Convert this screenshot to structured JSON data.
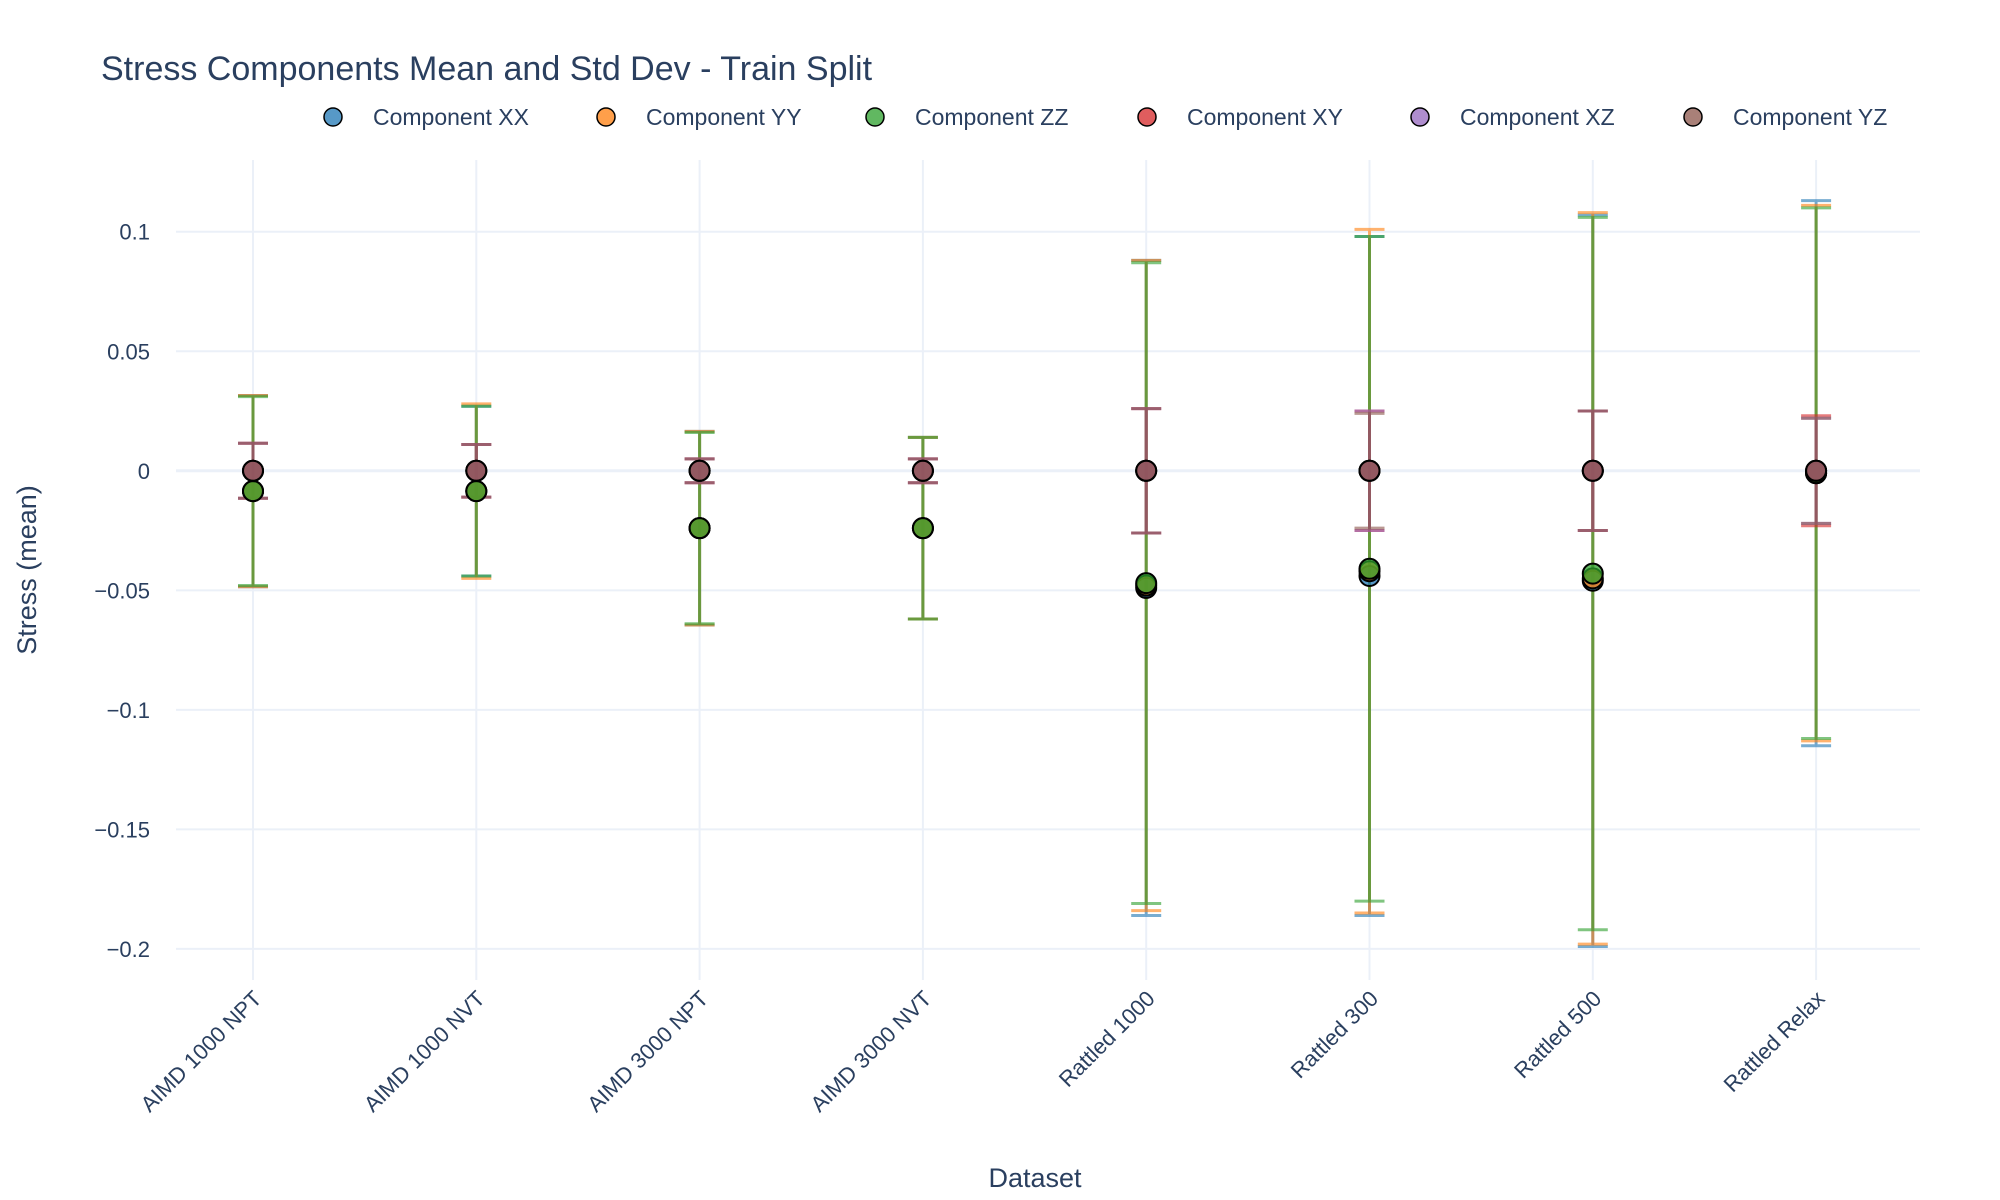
{
  "chart_data": {
    "type": "scatter",
    "title": "Stress Components Mean and Std Dev - Train Split",
    "xlabel": "Dataset",
    "ylabel": "Stress (mean)",
    "ylim": [
      -0.213,
      0.13
    ],
    "yticks": [
      0.1,
      0.05,
      0,
      -0.05,
      -0.1,
      -0.15,
      -0.2
    ],
    "ytick_labels": [
      "0.1",
      "0.05",
      "0",
      "−0.05",
      "−0.1",
      "−0.15",
      "−0.2"
    ],
    "grid": true,
    "legend_position": "top",
    "categories": [
      "AIMD 1000 NPT",
      "AIMD 1000 NVT",
      "AIMD 3000 NPT",
      "AIMD 3000 NVT",
      "Rattled 1000",
      "Rattled 300",
      "Rattled 500",
      "Rattled Relax"
    ],
    "series": [
      {
        "name": "Component XX",
        "color": "#1f77b4",
        "values": [
          -0.0085,
          -0.0085,
          -0.024,
          -0.024,
          -0.049,
          -0.044,
          -0.046,
          -0.001
        ],
        "std": [
          0.04,
          0.0355,
          0.0405,
          0.038,
          0.137,
          0.142,
          0.153,
          0.114
        ]
      },
      {
        "name": "Component YY",
        "color": "#ff7f0e",
        "values": [
          -0.0085,
          -0.0085,
          -0.024,
          -0.024,
          -0.048,
          -0.042,
          -0.045,
          -0.001
        ],
        "std": [
          0.04,
          0.0365,
          0.0405,
          0.038,
          0.136,
          0.143,
          0.153,
          0.112
        ]
      },
      {
        "name": "Component ZZ",
        "color": "#2ca02c",
        "values": [
          -0.0085,
          -0.0085,
          -0.024,
          -0.024,
          -0.047,
          -0.041,
          -0.043,
          -0.001
        ],
        "std": [
          0.0395,
          0.0355,
          0.04,
          0.038,
          0.134,
          0.139,
          0.149,
          0.111
        ]
      },
      {
        "name": "Component XY",
        "color": "#d62728",
        "values": [
          0,
          0,
          0,
          0,
          0,
          0,
          0,
          0
        ],
        "std": [
          0.0115,
          0.011,
          0.005,
          0.005,
          0.026,
          0.025,
          0.025,
          0.023
        ]
      },
      {
        "name": "Component XZ",
        "color": "#9467bd",
        "values": [
          0,
          0,
          0,
          0,
          0,
          0,
          0,
          0
        ],
        "std": [
          0.0115,
          0.011,
          0.005,
          0.005,
          0.026,
          0.025,
          0.025,
          0.022
        ]
      },
      {
        "name": "Component YZ",
        "color": "#8c564b",
        "values": [
          0,
          0,
          0,
          0,
          0,
          0,
          0,
          0
        ],
        "std": [
          0.0115,
          0.011,
          0.005,
          0.005,
          0.026,
          0.024,
          0.025,
          0.022
        ]
      }
    ]
  }
}
